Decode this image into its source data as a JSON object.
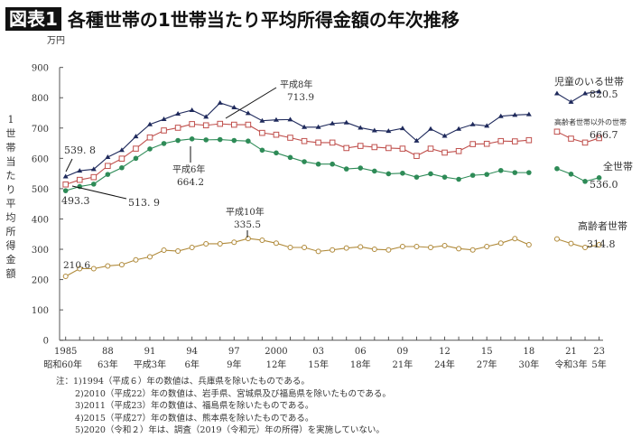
{
  "header": {
    "badge": "図表1",
    "title": "各種世帯の1世帯当たり平均所得金額の年次推移"
  },
  "chart_data": {
    "type": "line",
    "title": "各種世帯の1世帯当たり平均所得金額の年次推移",
    "unit": "万円",
    "ylabel": "1世帯当たり平均所得金額",
    "ylim": [
      0,
      900
    ],
    "yticks": [
      0,
      100,
      200,
      300,
      400,
      500,
      600,
      700,
      800,
      900
    ],
    "xlim": [
      1985,
      2023
    ],
    "xticks": [
      {
        "year": 1985,
        "top": "1985",
        "bottom": "昭和60年"
      },
      {
        "year": 1988,
        "top": "88",
        "bottom": "63年"
      },
      {
        "year": 1991,
        "top": "91",
        "bottom": "平成3年"
      },
      {
        "year": 1994,
        "top": "94",
        "bottom": "6年"
      },
      {
        "year": 1997,
        "top": "97",
        "bottom": "9年"
      },
      {
        "year": 2000,
        "top": "2000",
        "bottom": "12年"
      },
      {
        "year": 2003,
        "top": "03",
        "bottom": "15年"
      },
      {
        "year": 2006,
        "top": "06",
        "bottom": "18年"
      },
      {
        "year": 2009,
        "top": "09",
        "bottom": "21年"
      },
      {
        "year": 2012,
        "top": "12",
        "bottom": "24年"
      },
      {
        "year": 2015,
        "top": "15",
        "bottom": "27年"
      },
      {
        "year": 2018,
        "top": "18",
        "bottom": "30年"
      },
      {
        "year": 2021,
        "top": "21",
        "bottom": "令和3年"
      },
      {
        "year": 2023,
        "top": "23",
        "bottom": "5年"
      }
    ],
    "grid": false,
    "years_left": [
      1985,
      1986,
      1987,
      1988,
      1989,
      1990,
      1991,
      1992,
      1993,
      1994,
      1995,
      1996,
      1997,
      1998,
      1999,
      2000,
      2001,
      2002,
      2003,
      2004,
      2005,
      2006,
      2007,
      2008,
      2009,
      2010,
      2011,
      2012,
      2013,
      2014,
      2015,
      2016,
      2017,
      2018
    ],
    "years_right": [
      2020,
      2021,
      2022,
      2023
    ],
    "series": [
      {
        "name": "児童のいる世帯",
        "color": "#1f2a5c",
        "marker": "triangle",
        "end_label": "820.5",
        "left": [
          539.8,
          559,
          564,
          604,
          627,
          672,
          712,
          729,
          747,
          759,
          737,
          783,
          768,
          749,
          724,
          727,
          728,
          703,
          703,
          715,
          718,
          701,
          692,
          690,
          699,
          658,
          697,
          674,
          697,
          712,
          707,
          739,
          743,
          745
        ],
        "right": [
          814,
          786,
          814,
          820.5
        ]
      },
      {
        "name": "高齢者世帯以外の世帯",
        "color": "#c0504d",
        "marker": "square",
        "end_label": "666.7",
        "left": [
          513.9,
          529,
          538,
          575,
          599,
          632,
          669,
          692,
          701,
          713,
          709,
          713.9,
          711,
          711,
          684,
          678,
          668,
          657,
          652,
          652,
          634,
          641,
          637,
          634,
          632,
          608,
          632,
          619,
          624,
          647,
          648,
          657,
          656,
          660
        ],
        "right": [
          688,
          665,
          652,
          666.7
        ]
      },
      {
        "name": "全世帯",
        "color": "#2e8b57",
        "marker": "dot",
        "end_label": "536.0",
        "left": [
          493.3,
          507,
          515,
          547,
          569,
          600,
          631,
          649,
          659,
          664.2,
          661,
          662,
          659,
          657,
          627,
          618,
          603,
          589,
          581,
          581,
          565,
          568,
          558,
          549,
          551,
          538,
          549,
          538,
          531,
          544,
          547,
          560,
          553,
          553
        ],
        "right": [
          566,
          548,
          524,
          536.0
        ]
      },
      {
        "name": "高齢者世帯",
        "color": "#b08a3a",
        "marker": "circle",
        "end_label": "314.8",
        "left": [
          210.6,
          236,
          236,
          245,
          249,
          265,
          275,
          297,
          294,
          306,
          318,
          318,
          323,
          335.5,
          330,
          320,
          306,
          306,
          293,
          298,
          304,
          308,
          300,
          298,
          309,
          309,
          306,
          312,
          302,
          298,
          309,
          320,
          335,
          315
        ],
        "right": [
          334,
          319,
          306,
          314.8
        ]
      }
    ],
    "annotations": [
      {
        "label": "539. 8"
      },
      {
        "label": "493.3"
      },
      {
        "label": "513. 9"
      },
      {
        "label": "平成8年",
        "value": "713.9"
      },
      {
        "label": "平成6年",
        "value": "664.2"
      },
      {
        "label": "平成10年",
        "value": "335.5"
      },
      {
        "label": "210.6"
      }
    ]
  },
  "notes": [
    "注：1)1994（平成６）年の数値は、兵庫県を除いたものである。",
    "2)2010（平成22）年の数値は、岩手県、宮城県及び福島県を除いたものである。",
    "3)2011（平成23）年の数値は、福島県を除いたものである。",
    "4)2015（平成27）年の数値は、熊本県を除いたものである。",
    "5)2020（令和２）年は、調査（2019（令和元）年の所得）を実施していない。"
  ]
}
